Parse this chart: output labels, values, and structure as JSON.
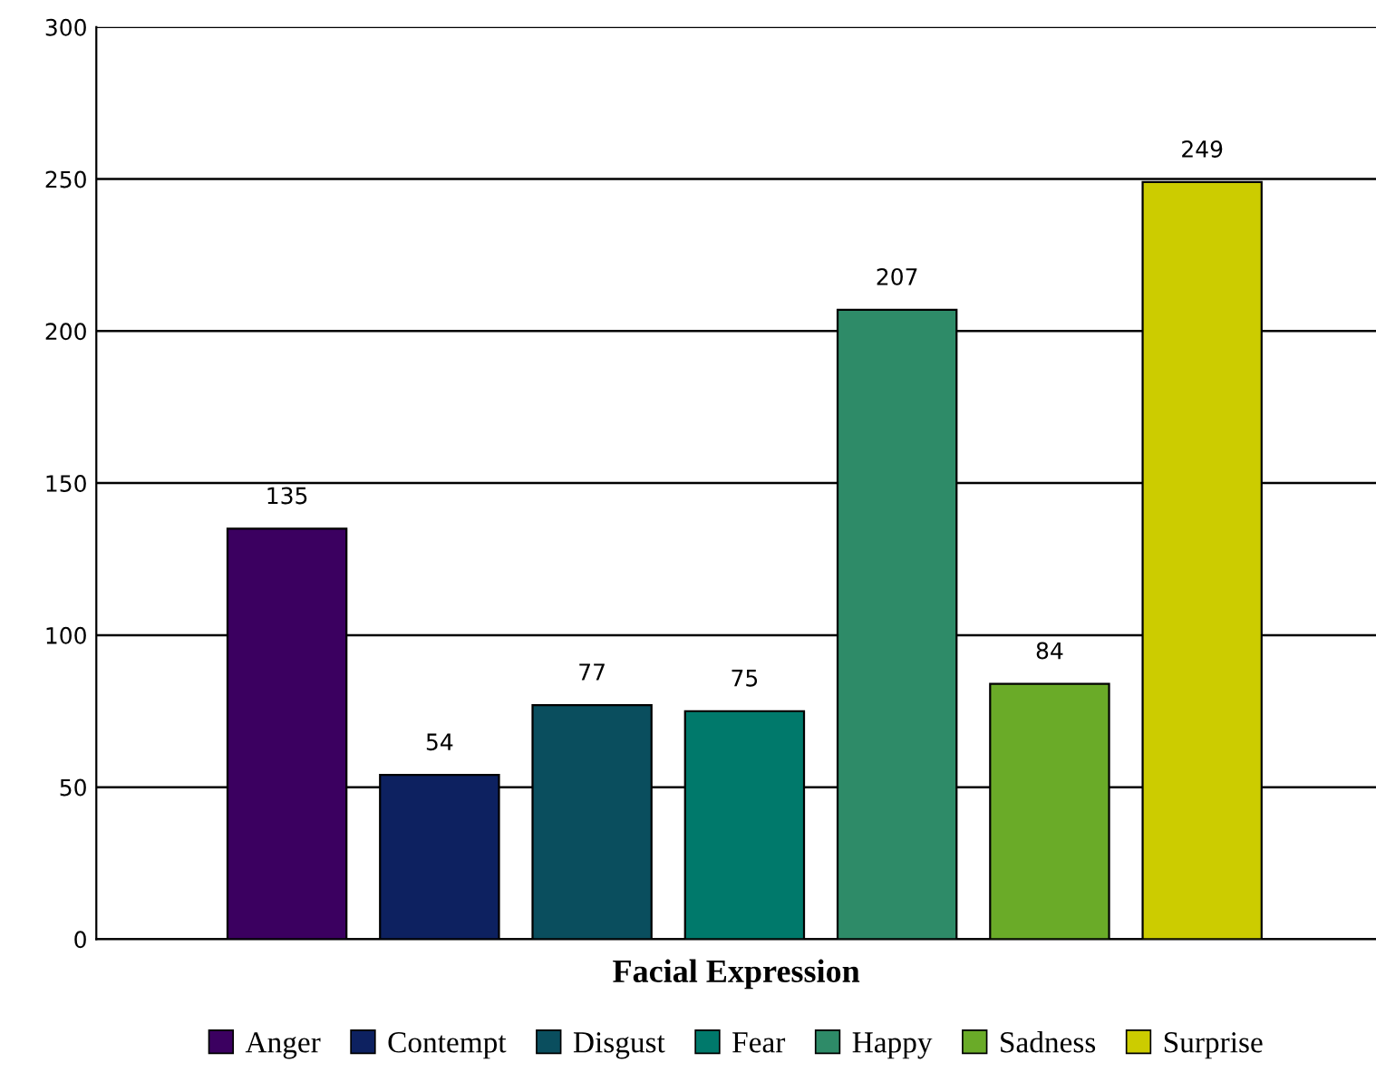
{
  "chart_data": {
    "type": "bar",
    "xlabel": "Facial Expression",
    "categories": [
      null
    ],
    "series": [
      {
        "name": "Anger",
        "color": "#3b0060",
        "values": [
          135
        ]
      },
      {
        "name": "Contempt",
        "color": "#0d2160",
        "values": [
          54
        ]
      },
      {
        "name": "Disgust",
        "color": "#0a4e5e",
        "values": [
          77
        ]
      },
      {
        "name": "Fear",
        "color": "#00796b",
        "values": [
          75
        ]
      },
      {
        "name": "Happy",
        "color": "#2e8b68",
        "values": [
          207
        ]
      },
      {
        "name": "Sadness",
        "color": "#6aab28",
        "values": [
          84
        ]
      },
      {
        "name": "Surprise",
        "color": "#cccc00",
        "values": [
          249
        ]
      }
    ],
    "ylim": [
      0,
      300
    ],
    "yticks": [
      0,
      50,
      100,
      150,
      200,
      250,
      300
    ],
    "grid": "y",
    "legend": "bottom",
    "data_labels": true
  }
}
